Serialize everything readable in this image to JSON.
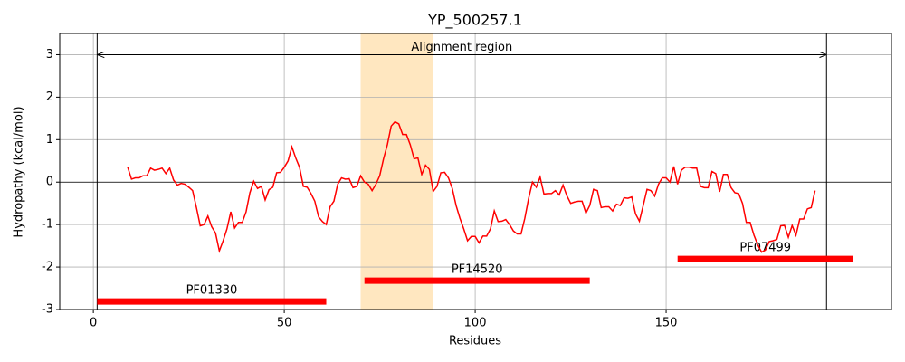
{
  "chart_data": {
    "type": "line",
    "title": "YP_500257.1",
    "x_label": "Residues",
    "y_label": "Hydropathy (kcal/mol)",
    "xlim": [
      -8.8,
      209
    ],
    "ylim": [
      -3,
      3.5
    ],
    "xticks": [
      0,
      50,
      100,
      150
    ],
    "yticks": [
      -3,
      -2,
      -1,
      0,
      1,
      2,
      3
    ],
    "grid": true,
    "hline": 0,
    "x": [
      9,
      10,
      11,
      12,
      13,
      14,
      15,
      16,
      17,
      18,
      19,
      20,
      21,
      22,
      23,
      24,
      25,
      26,
      27,
      28,
      29,
      30,
      31,
      32,
      33,
      34,
      35,
      36,
      37,
      38,
      39,
      40,
      41,
      42,
      43,
      44,
      45,
      46,
      47,
      48,
      49,
      50,
      51,
      52,
      53,
      54,
      55,
      56,
      57,
      58,
      59,
      60,
      61,
      62,
      63,
      64,
      65,
      66,
      67,
      68,
      69,
      70,
      71,
      72,
      73,
      74,
      75,
      76,
      77,
      78,
      79,
      80,
      81,
      82,
      83,
      84,
      85,
      86,
      87,
      88,
      89,
      90,
      91,
      92,
      93,
      94,
      95,
      96,
      97,
      98,
      99,
      100,
      101,
      102,
      103,
      104,
      105,
      106,
      107,
      108,
      109,
      110,
      111,
      112,
      113,
      114,
      115,
      116,
      117,
      118,
      119,
      120,
      121,
      122,
      123,
      124,
      125,
      126,
      127,
      128,
      129,
      130,
      131,
      132,
      133,
      134,
      135,
      136,
      137,
      138,
      139,
      140,
      141,
      142,
      143,
      144,
      145,
      146,
      147,
      148,
      149,
      150,
      151,
      152,
      153,
      154,
      155,
      156,
      157,
      158,
      159,
      160,
      161,
      162,
      163,
      164,
      165,
      166,
      167,
      168,
      169,
      170,
      171,
      172,
      173,
      174,
      175,
      176,
      177,
      178,
      179,
      180,
      181,
      182,
      183,
      184,
      185,
      186,
      187,
      188,
      189
    ],
    "series": [
      {
        "color": "#ff0000",
        "values": [
          0.35,
          0.07,
          0.1,
          0.1,
          0.15,
          0.15,
          0.33,
          0.28,
          0.3,
          0.33,
          0.2,
          0.33,
          0.05,
          -0.07,
          -0.03,
          -0.05,
          -0.12,
          -0.2,
          -0.6,
          -1.03,
          -1.0,
          -0.8,
          -1.05,
          -1.2,
          -1.62,
          -1.38,
          -1.1,
          -0.7,
          -1.08,
          -0.95,
          -0.95,
          -0.7,
          -0.25,
          0.02,
          -0.15,
          -0.1,
          -0.42,
          -0.18,
          -0.12,
          0.22,
          0.23,
          0.35,
          0.5,
          0.83,
          0.57,
          0.35,
          -0.1,
          -0.12,
          -0.27,
          -0.45,
          -0.82,
          -0.93,
          -1.0,
          -0.58,
          -0.45,
          -0.05,
          0.1,
          0.07,
          0.08,
          -0.13,
          -0.1,
          0.15,
          0.0,
          -0.05,
          -0.2,
          -0.05,
          0.15,
          0.55,
          0.88,
          1.32,
          1.42,
          1.37,
          1.12,
          1.12,
          0.88,
          0.55,
          0.57,
          0.18,
          0.4,
          0.3,
          -0.22,
          -0.1,
          0.22,
          0.23,
          0.1,
          -0.15,
          -0.55,
          -0.85,
          -1.1,
          -1.38,
          -1.28,
          -1.28,
          -1.43,
          -1.27,
          -1.27,
          -1.1,
          -0.68,
          -0.93,
          -0.92,
          -0.88,
          -1.0,
          -1.15,
          -1.22,
          -1.22,
          -0.85,
          -0.38,
          0.0,
          -0.12,
          0.12,
          -0.28,
          -0.27,
          -0.27,
          -0.2,
          -0.3,
          -0.07,
          -0.32,
          -0.5,
          -0.47,
          -0.45,
          -0.45,
          -0.73,
          -0.55,
          -0.17,
          -0.2,
          -0.6,
          -0.58,
          -0.58,
          -0.68,
          -0.52,
          -0.55,
          -0.37,
          -0.38,
          -0.35,
          -0.75,
          -0.92,
          -0.55,
          -0.17,
          -0.2,
          -0.33,
          -0.05,
          0.1,
          0.1,
          0.0,
          0.37,
          -0.05,
          0.28,
          0.35,
          0.35,
          0.33,
          0.33,
          -0.1,
          -0.13,
          -0.13,
          0.25,
          0.2,
          -0.23,
          0.18,
          0.18,
          -0.13,
          -0.25,
          -0.27,
          -0.5,
          -0.95,
          -0.95,
          -1.25,
          -1.48,
          -1.65,
          -1.6,
          -1.4,
          -1.38,
          -1.35,
          -1.03,
          -1.02,
          -1.3,
          -1.02,
          -1.25,
          -0.87,
          -0.87,
          -0.63,
          -0.6,
          -0.2
        ]
      }
    ],
    "shaded_region": {
      "start": 70,
      "end": 89,
      "color": "#ffe7c0"
    },
    "alignment": {
      "label": "Alignment region",
      "start": 1,
      "end": 192,
      "y": 3
    },
    "domains": [
      {
        "name": "PF01330",
        "start": 1,
        "end": 61,
        "y": -2.81,
        "color": "#ff0000"
      },
      {
        "name": "PF14520",
        "start": 71,
        "end": 130,
        "y": -2.32,
        "color": "#ff0000"
      },
      {
        "name": "PF07499",
        "start": 153,
        "end": 199,
        "y": -1.81,
        "color": "#ff0000"
      }
    ]
  }
}
